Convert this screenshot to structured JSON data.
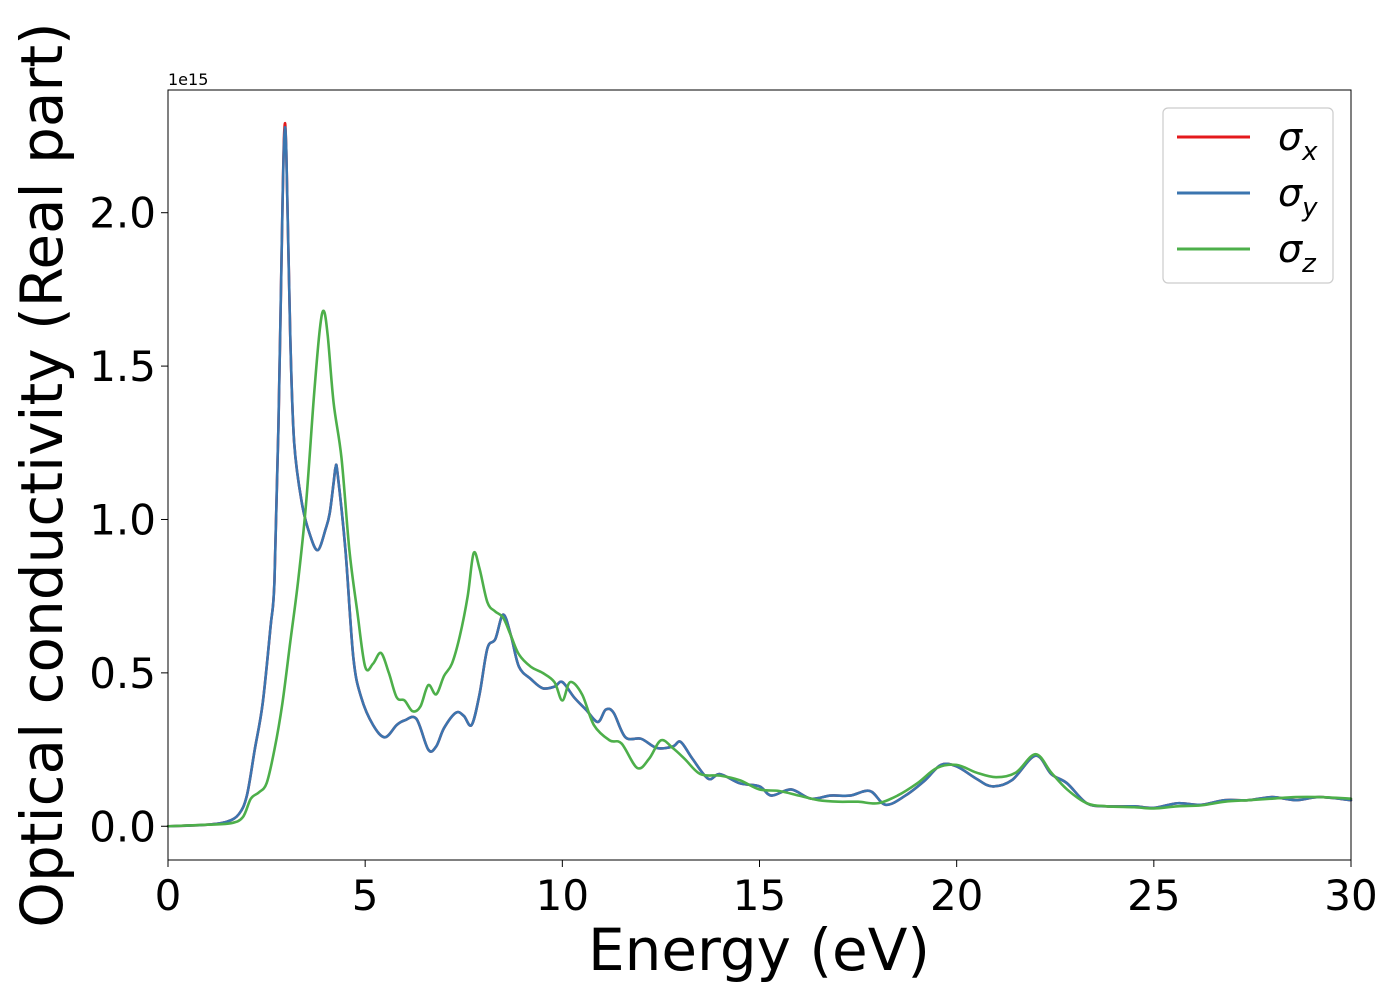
{
  "chart_data": {
    "type": "line",
    "xlabel": "Energy (eV)",
    "ylabel": "Optical conductivity (Real part)",
    "y_offset_label": "1e15",
    "xlim": [
      0,
      30
    ],
    "ylim": [
      -0.11,
      2.4
    ],
    "x_ticks": [
      0,
      5,
      10,
      15,
      20,
      25,
      30
    ],
    "x_tick_labels": [
      "0",
      "5",
      "10",
      "15",
      "20",
      "25",
      "30"
    ],
    "y_ticks": [
      0.0,
      0.5,
      1.0,
      1.5,
      2.0
    ],
    "y_tick_labels": [
      "0.0",
      "0.5",
      "1.0",
      "1.5",
      "2.0"
    ],
    "grid": false,
    "legend_position": "top-right",
    "series": [
      {
        "name": "σ",
        "subscript": "x",
        "color": "#e41a1c",
        "points": [
          [
            0,
            0
          ],
          [
            1,
            0.005
          ],
          [
            1.5,
            0.015
          ],
          [
            1.8,
            0.04
          ],
          [
            2.0,
            0.1
          ],
          [
            2.2,
            0.25
          ],
          [
            2.4,
            0.4
          ],
          [
            2.6,
            0.65
          ],
          [
            2.7,
            0.8
          ],
          [
            2.8,
            1.3
          ],
          [
            2.9,
            2.0
          ],
          [
            2.95,
            2.27
          ],
          [
            3.0,
            2.2
          ],
          [
            3.1,
            1.6
          ],
          [
            3.2,
            1.25
          ],
          [
            3.4,
            1.05
          ],
          [
            3.6,
            0.95
          ],
          [
            3.8,
            0.9
          ],
          [
            4.0,
            0.97
          ],
          [
            4.1,
            1.02
          ],
          [
            4.2,
            1.12
          ],
          [
            4.25,
            1.17
          ],
          [
            4.3,
            1.15
          ],
          [
            4.5,
            0.9
          ],
          [
            4.7,
            0.55
          ],
          [
            4.9,
            0.42
          ],
          [
            5.2,
            0.33
          ],
          [
            5.5,
            0.29
          ],
          [
            5.8,
            0.33
          ],
          [
            6.0,
            0.345
          ],
          [
            6.3,
            0.35
          ],
          [
            6.6,
            0.25
          ],
          [
            6.8,
            0.26
          ],
          [
            7.0,
            0.32
          ],
          [
            7.3,
            0.37
          ],
          [
            7.5,
            0.36
          ],
          [
            7.7,
            0.33
          ],
          [
            7.9,
            0.43
          ],
          [
            8.1,
            0.58
          ],
          [
            8.3,
            0.61
          ],
          [
            8.5,
            0.69
          ],
          [
            8.7,
            0.62
          ],
          [
            8.9,
            0.52
          ],
          [
            9.2,
            0.48
          ],
          [
            9.5,
            0.45
          ],
          [
            9.8,
            0.455
          ],
          [
            10.0,
            0.47
          ],
          [
            10.3,
            0.42
          ],
          [
            10.6,
            0.38
          ],
          [
            10.9,
            0.34
          ],
          [
            11.1,
            0.38
          ],
          [
            11.3,
            0.37
          ],
          [
            11.6,
            0.29
          ],
          [
            12.0,
            0.285
          ],
          [
            12.4,
            0.255
          ],
          [
            12.8,
            0.26
          ],
          [
            13.0,
            0.275
          ],
          [
            13.3,
            0.22
          ],
          [
            13.7,
            0.155
          ],
          [
            14.0,
            0.17
          ],
          [
            14.5,
            0.14
          ],
          [
            15.0,
            0.13
          ],
          [
            15.3,
            0.1
          ],
          [
            15.8,
            0.12
          ],
          [
            16.3,
            0.09
          ],
          [
            16.8,
            0.1
          ],
          [
            17.3,
            0.1
          ],
          [
            17.8,
            0.115
          ],
          [
            18.2,
            0.07
          ],
          [
            18.7,
            0.1
          ],
          [
            19.2,
            0.15
          ],
          [
            19.6,
            0.2
          ],
          [
            20.0,
            0.195
          ],
          [
            20.5,
            0.155
          ],
          [
            20.9,
            0.13
          ],
          [
            21.4,
            0.15
          ],
          [
            22.0,
            0.23
          ],
          [
            22.4,
            0.17
          ],
          [
            22.8,
            0.14
          ],
          [
            23.3,
            0.075
          ],
          [
            23.8,
            0.065
          ],
          [
            24.5,
            0.065
          ],
          [
            25.0,
            0.06
          ],
          [
            25.6,
            0.075
          ],
          [
            26.2,
            0.07
          ],
          [
            26.8,
            0.085
          ],
          [
            27.4,
            0.085
          ],
          [
            28.0,
            0.095
          ],
          [
            28.6,
            0.085
          ],
          [
            29.2,
            0.095
          ],
          [
            30.0,
            0.085
          ]
        ]
      },
      {
        "name": "σ",
        "subscript": "y",
        "color": "#3b75af",
        "points": [
          [
            0,
            0
          ],
          [
            1,
            0.005
          ],
          [
            1.5,
            0.015
          ],
          [
            1.8,
            0.04
          ],
          [
            2.0,
            0.1
          ],
          [
            2.2,
            0.25
          ],
          [
            2.4,
            0.4
          ],
          [
            2.6,
            0.65
          ],
          [
            2.7,
            0.8
          ],
          [
            2.8,
            1.3
          ],
          [
            2.9,
            2.0
          ],
          [
            2.95,
            2.25
          ],
          [
            3.0,
            2.2
          ],
          [
            3.1,
            1.6
          ],
          [
            3.2,
            1.25
          ],
          [
            3.4,
            1.05
          ],
          [
            3.6,
            0.95
          ],
          [
            3.8,
            0.9
          ],
          [
            4.0,
            0.97
          ],
          [
            4.1,
            1.02
          ],
          [
            4.2,
            1.12
          ],
          [
            4.25,
            1.17
          ],
          [
            4.3,
            1.15
          ],
          [
            4.5,
            0.9
          ],
          [
            4.7,
            0.55
          ],
          [
            4.9,
            0.42
          ],
          [
            5.2,
            0.33
          ],
          [
            5.5,
            0.29
          ],
          [
            5.8,
            0.33
          ],
          [
            6.0,
            0.345
          ],
          [
            6.3,
            0.35
          ],
          [
            6.6,
            0.25
          ],
          [
            6.8,
            0.26
          ],
          [
            7.0,
            0.32
          ],
          [
            7.3,
            0.37
          ],
          [
            7.5,
            0.36
          ],
          [
            7.7,
            0.33
          ],
          [
            7.9,
            0.43
          ],
          [
            8.1,
            0.58
          ],
          [
            8.3,
            0.61
          ],
          [
            8.5,
            0.69
          ],
          [
            8.7,
            0.62
          ],
          [
            8.9,
            0.52
          ],
          [
            9.2,
            0.48
          ],
          [
            9.5,
            0.45
          ],
          [
            9.8,
            0.455
          ],
          [
            10.0,
            0.47
          ],
          [
            10.3,
            0.42
          ],
          [
            10.6,
            0.38
          ],
          [
            10.9,
            0.34
          ],
          [
            11.1,
            0.38
          ],
          [
            11.3,
            0.37
          ],
          [
            11.6,
            0.29
          ],
          [
            12.0,
            0.285
          ],
          [
            12.4,
            0.255
          ],
          [
            12.8,
            0.26
          ],
          [
            13.0,
            0.275
          ],
          [
            13.3,
            0.22
          ],
          [
            13.7,
            0.155
          ],
          [
            14.0,
            0.17
          ],
          [
            14.5,
            0.14
          ],
          [
            15.0,
            0.13
          ],
          [
            15.3,
            0.1
          ],
          [
            15.8,
            0.12
          ],
          [
            16.3,
            0.09
          ],
          [
            16.8,
            0.1
          ],
          [
            17.3,
            0.1
          ],
          [
            17.8,
            0.115
          ],
          [
            18.2,
            0.07
          ],
          [
            18.7,
            0.1
          ],
          [
            19.2,
            0.15
          ],
          [
            19.6,
            0.2
          ],
          [
            20.0,
            0.195
          ],
          [
            20.5,
            0.155
          ],
          [
            20.9,
            0.13
          ],
          [
            21.4,
            0.15
          ],
          [
            22.0,
            0.23
          ],
          [
            22.4,
            0.17
          ],
          [
            22.8,
            0.14
          ],
          [
            23.3,
            0.075
          ],
          [
            23.8,
            0.065
          ],
          [
            24.5,
            0.065
          ],
          [
            25.0,
            0.06
          ],
          [
            25.6,
            0.075
          ],
          [
            26.2,
            0.07
          ],
          [
            26.8,
            0.085
          ],
          [
            27.4,
            0.085
          ],
          [
            28.0,
            0.095
          ],
          [
            28.6,
            0.085
          ],
          [
            29.2,
            0.095
          ],
          [
            30.0,
            0.085
          ]
        ]
      },
      {
        "name": "σ",
        "subscript": "z",
        "color": "#4daf4a",
        "points": [
          [
            0,
            0
          ],
          [
            1,
            0.005
          ],
          [
            1.6,
            0.01
          ],
          [
            1.9,
            0.03
          ],
          [
            2.1,
            0.09
          ],
          [
            2.3,
            0.11
          ],
          [
            2.5,
            0.14
          ],
          [
            2.7,
            0.25
          ],
          [
            2.9,
            0.4
          ],
          [
            3.1,
            0.6
          ],
          [
            3.3,
            0.8
          ],
          [
            3.5,
            1.05
          ],
          [
            3.7,
            1.4
          ],
          [
            3.85,
            1.62
          ],
          [
            3.95,
            1.68
          ],
          [
            4.05,
            1.6
          ],
          [
            4.2,
            1.38
          ],
          [
            4.4,
            1.2
          ],
          [
            4.6,
            0.9
          ],
          [
            4.8,
            0.7
          ],
          [
            5.0,
            0.52
          ],
          [
            5.2,
            0.53
          ],
          [
            5.4,
            0.565
          ],
          [
            5.6,
            0.5
          ],
          [
            5.8,
            0.42
          ],
          [
            6.0,
            0.41
          ],
          [
            6.2,
            0.375
          ],
          [
            6.4,
            0.39
          ],
          [
            6.6,
            0.46
          ],
          [
            6.8,
            0.43
          ],
          [
            7.0,
            0.49
          ],
          [
            7.2,
            0.53
          ],
          [
            7.4,
            0.62
          ],
          [
            7.6,
            0.75
          ],
          [
            7.75,
            0.89
          ],
          [
            7.9,
            0.84
          ],
          [
            8.1,
            0.73
          ],
          [
            8.3,
            0.7
          ],
          [
            8.5,
            0.68
          ],
          [
            8.7,
            0.62
          ],
          [
            8.9,
            0.56
          ],
          [
            9.2,
            0.52
          ],
          [
            9.5,
            0.5
          ],
          [
            9.8,
            0.47
          ],
          [
            10.0,
            0.41
          ],
          [
            10.2,
            0.47
          ],
          [
            10.5,
            0.43
          ],
          [
            10.8,
            0.33
          ],
          [
            11.2,
            0.28
          ],
          [
            11.5,
            0.27
          ],
          [
            11.9,
            0.19
          ],
          [
            12.2,
            0.22
          ],
          [
            12.5,
            0.28
          ],
          [
            12.8,
            0.255
          ],
          [
            13.1,
            0.22
          ],
          [
            13.5,
            0.17
          ],
          [
            14.0,
            0.165
          ],
          [
            14.5,
            0.15
          ],
          [
            15.0,
            0.12
          ],
          [
            15.5,
            0.115
          ],
          [
            16.0,
            0.1
          ],
          [
            16.5,
            0.085
          ],
          [
            17.0,
            0.08
          ],
          [
            17.5,
            0.08
          ],
          [
            18.0,
            0.075
          ],
          [
            18.5,
            0.1
          ],
          [
            19.0,
            0.14
          ],
          [
            19.5,
            0.19
          ],
          [
            20.0,
            0.2
          ],
          [
            20.5,
            0.175
          ],
          [
            21.0,
            0.16
          ],
          [
            21.5,
            0.175
          ],
          [
            22.0,
            0.235
          ],
          [
            22.4,
            0.175
          ],
          [
            22.8,
            0.12
          ],
          [
            23.3,
            0.075
          ],
          [
            23.8,
            0.065
          ],
          [
            24.5,
            0.062
          ],
          [
            25.0,
            0.058
          ],
          [
            25.6,
            0.065
          ],
          [
            26.2,
            0.068
          ],
          [
            26.8,
            0.08
          ],
          [
            27.4,
            0.085
          ],
          [
            28.0,
            0.09
          ],
          [
            28.6,
            0.095
          ],
          [
            29.2,
            0.095
          ],
          [
            30.0,
            0.09
          ]
        ]
      }
    ]
  }
}
